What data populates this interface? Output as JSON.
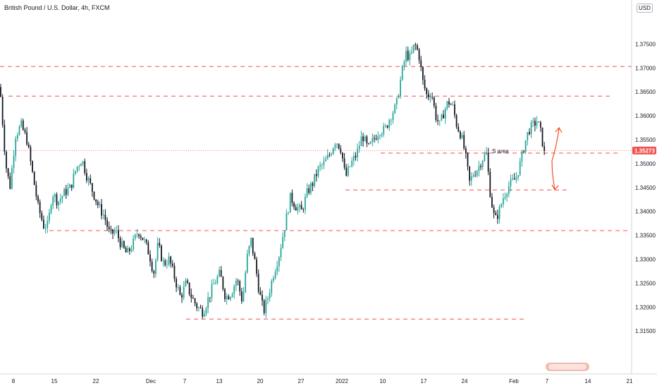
{
  "header": {
    "title": "British Pound / U.S. Dollar, 4h, FXCM",
    "currency": "USD"
  },
  "chart_data": {
    "type": "candlestick",
    "symbol": "British Pound / U.S. Dollar",
    "interval": "4h",
    "source": "FXCM",
    "ylim": [
      1.3125,
      1.38
    ],
    "y_ticks": [
      1.315,
      1.32,
      1.325,
      1.33,
      1.335,
      1.34,
      1.345,
      1.35,
      1.355,
      1.36,
      1.365,
      1.37,
      1.375
    ],
    "y_tick_labels": [
      "1.31500",
      "1.32000",
      "1.32500",
      "1.33000",
      "1.33500",
      "1.34000",
      "1.34500",
      "1.35000",
      "1.35500",
      "1.36000",
      "1.36500",
      "1.37000",
      "1.37500"
    ],
    "x_tick_labels": [
      "8",
      "15",
      "22",
      "Dec",
      "7",
      "13",
      "20",
      "27",
      "2022",
      "10",
      "17",
      "24",
      "Feb",
      "7",
      "14",
      "21"
    ],
    "last_price": 1.35273,
    "last_price_label": "1.35273",
    "annotation": "S area",
    "horizontal_levels": [
      {
        "value": 1.3703,
        "style": "dashed",
        "color": "#ef5350"
      },
      {
        "value": 1.3641,
        "style": "dashed",
        "color": "#ef5350"
      },
      {
        "value": 1.3522,
        "style": "dashed",
        "color": "#ef5350"
      },
      {
        "value": 1.3445,
        "style": "dashed",
        "color": "#ef5350"
      },
      {
        "value": 1.336,
        "style": "dashed",
        "color": "#ef5350"
      },
      {
        "value": 1.3175,
        "style": "dashed",
        "color": "#ef5350"
      }
    ],
    "path_closes": [
      [
        0,
        1.366
      ],
      [
        8,
        1.35
      ],
      [
        14,
        1.345
      ],
      [
        22,
        1.356
      ],
      [
        30,
        1.358
      ],
      [
        38,
        1.355
      ],
      [
        46,
        1.348
      ],
      [
        54,
        1.341
      ],
      [
        62,
        1.337
      ],
      [
        68,
        1.337
      ],
      [
        74,
        1.344
      ],
      [
        82,
        1.342
      ],
      [
        92,
        1.344
      ],
      [
        100,
        1.345
      ],
      [
        108,
        1.349
      ],
      [
        116,
        1.351
      ],
      [
        124,
        1.347
      ],
      [
        132,
        1.344
      ],
      [
        140,
        1.341
      ],
      [
        148,
        1.339
      ],
      [
        156,
        1.335
      ],
      [
        164,
        1.336
      ],
      [
        172,
        1.333
      ],
      [
        180,
        1.331
      ],
      [
        188,
        1.333
      ],
      [
        196,
        1.336
      ],
      [
        204,
        1.334
      ],
      [
        212,
        1.331
      ],
      [
        218,
        1.327
      ],
      [
        224,
        1.333
      ],
      [
        232,
        1.329
      ],
      [
        240,
        1.33
      ],
      [
        248,
        1.326
      ],
      [
        256,
        1.322
      ],
      [
        264,
        1.325
      ],
      [
        272,
        1.322
      ],
      [
        280,
        1.32
      ],
      [
        288,
        1.319
      ],
      [
        296,
        1.322
      ],
      [
        304,
        1.325
      ],
      [
        312,
        1.327
      ],
      [
        320,
        1.322
      ],
      [
        328,
        1.323
      ],
      [
        336,
        1.326
      ],
      [
        344,
        1.321
      ],
      [
        350,
        1.33
      ],
      [
        356,
        1.334
      ],
      [
        362,
        1.329
      ],
      [
        368,
        1.323
      ],
      [
        374,
        1.319
      ],
      [
        380,
        1.322
      ],
      [
        388,
        1.327
      ],
      [
        396,
        1.331
      ],
      [
        404,
        1.337
      ],
      [
        412,
        1.343
      ],
      [
        420,
        1.341
      ],
      [
        428,
        1.34
      ],
      [
        436,
        1.344
      ],
      [
        444,
        1.346
      ],
      [
        452,
        1.349
      ],
      [
        460,
        1.35
      ],
      [
        468,
        1.352
      ],
      [
        476,
        1.355
      ],
      [
        484,
        1.353
      ],
      [
        490,
        1.347
      ],
      [
        498,
        1.35
      ],
      [
        506,
        1.352
      ],
      [
        514,
        1.356
      ],
      [
        522,
        1.353
      ],
      [
        530,
        1.355
      ],
      [
        538,
        1.357
      ],
      [
        546,
        1.357
      ],
      [
        554,
        1.36
      ],
      [
        562,
        1.362
      ],
      [
        570,
        1.369
      ],
      [
        576,
        1.373
      ],
      [
        582,
        1.372
      ],
      [
        588,
        1.375
      ],
      [
        594,
        1.373
      ],
      [
        600,
        1.367
      ],
      [
        606,
        1.364
      ],
      [
        612,
        1.365
      ],
      [
        618,
        1.36
      ],
      [
        624,
        1.358
      ],
      [
        630,
        1.361
      ],
      [
        636,
        1.363
      ],
      [
        642,
        1.362
      ],
      [
        648,
        1.358
      ],
      [
        654,
        1.356
      ],
      [
        660,
        1.352
      ],
      [
        666,
        1.346
      ],
      [
        672,
        1.348
      ],
      [
        678,
        1.349
      ],
      [
        684,
        1.351
      ],
      [
        690,
        1.352
      ],
      [
        696,
        1.343
      ],
      [
        702,
        1.338
      ],
      [
        708,
        1.34
      ],
      [
        714,
        1.343
      ],
      [
        720,
        1.345
      ],
      [
        726,
        1.346
      ],
      [
        732,
        1.347
      ],
      [
        738,
        1.35
      ],
      [
        744,
        1.354
      ],
      [
        750,
        1.357
      ],
      [
        756,
        1.358
      ],
      [
        762,
        1.359
      ],
      [
        768,
        1.356
      ],
      [
        772,
        1.352
      ],
      [
        774,
        1.35273
      ]
    ],
    "colors": {
      "up": "#26a69a",
      "down": "#ef5350",
      "candle_body": "#131722",
      "levels": "#ef5350",
      "arrow": "#f4511e",
      "last_price_line": "#ef5350"
    }
  }
}
